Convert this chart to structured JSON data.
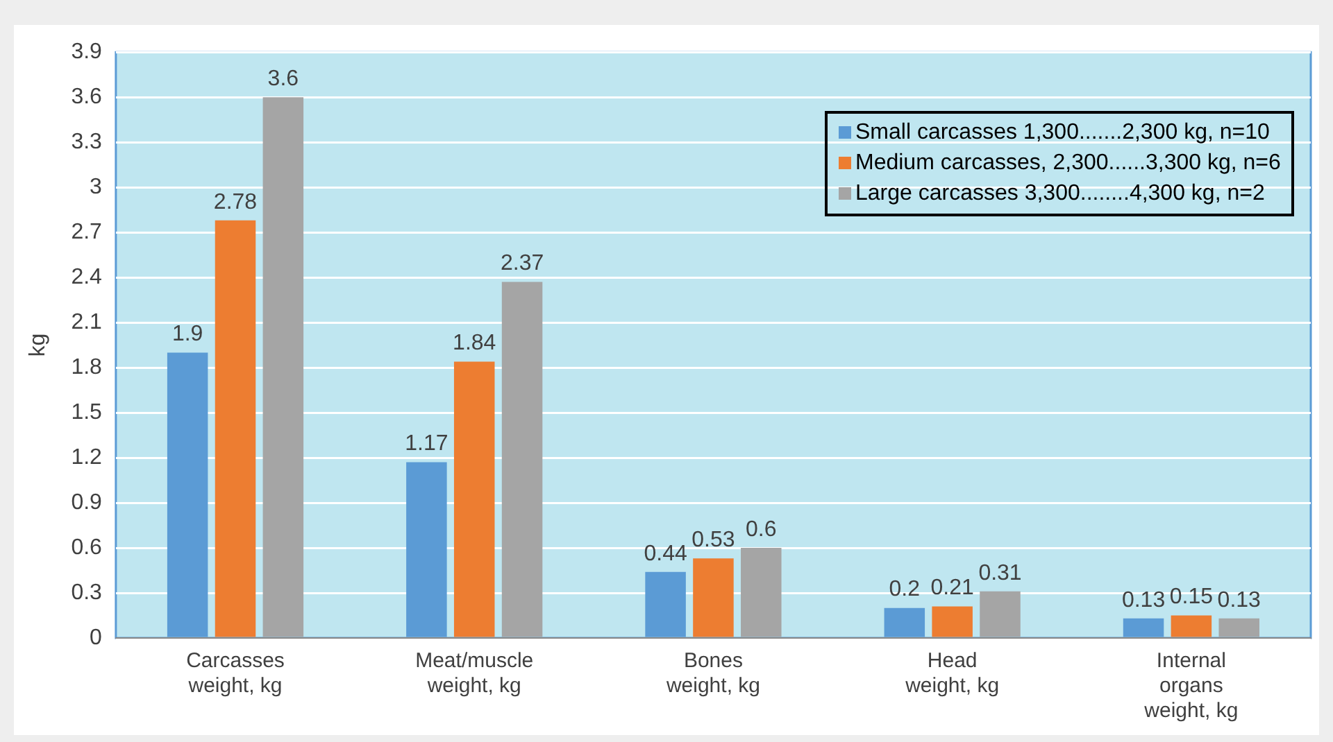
{
  "chart_data": {
    "type": "bar",
    "ylabel": "kg",
    "categories": [
      "Carcasses\nweight, kg",
      "Meat/muscle\nweight, kg",
      "Bones\nweight, kg",
      "Head\nweight, kg",
      "Internal\norgans\nweight, kg"
    ],
    "series": [
      {
        "name": "Small carcasses 1,300.......2,300 kg, n=10",
        "color": "#5b9bd5",
        "values": [
          1.9,
          1.17,
          0.44,
          0.2,
          0.13
        ]
      },
      {
        "name": "Medium carcasses, 2,300......3,300 kg, n=6",
        "color": "#ed7d31",
        "values": [
          2.78,
          1.84,
          0.53,
          0.21,
          0.15
        ]
      },
      {
        "name": "Large carcasses 3,300........4,300 kg, n=2",
        "color": "#a5a5a5",
        "values": [
          3.6,
          2.37,
          0.6,
          0.31,
          0.13
        ]
      }
    ],
    "ylim": [
      0,
      3.9
    ],
    "yticks": [
      0,
      0.3,
      0.6,
      0.9,
      1.2,
      1.5,
      1.8,
      2.1,
      2.4,
      2.7,
      3,
      3.3,
      3.6,
      3.9
    ],
    "grid": "y",
    "legend": "top right",
    "data_labels": true
  }
}
